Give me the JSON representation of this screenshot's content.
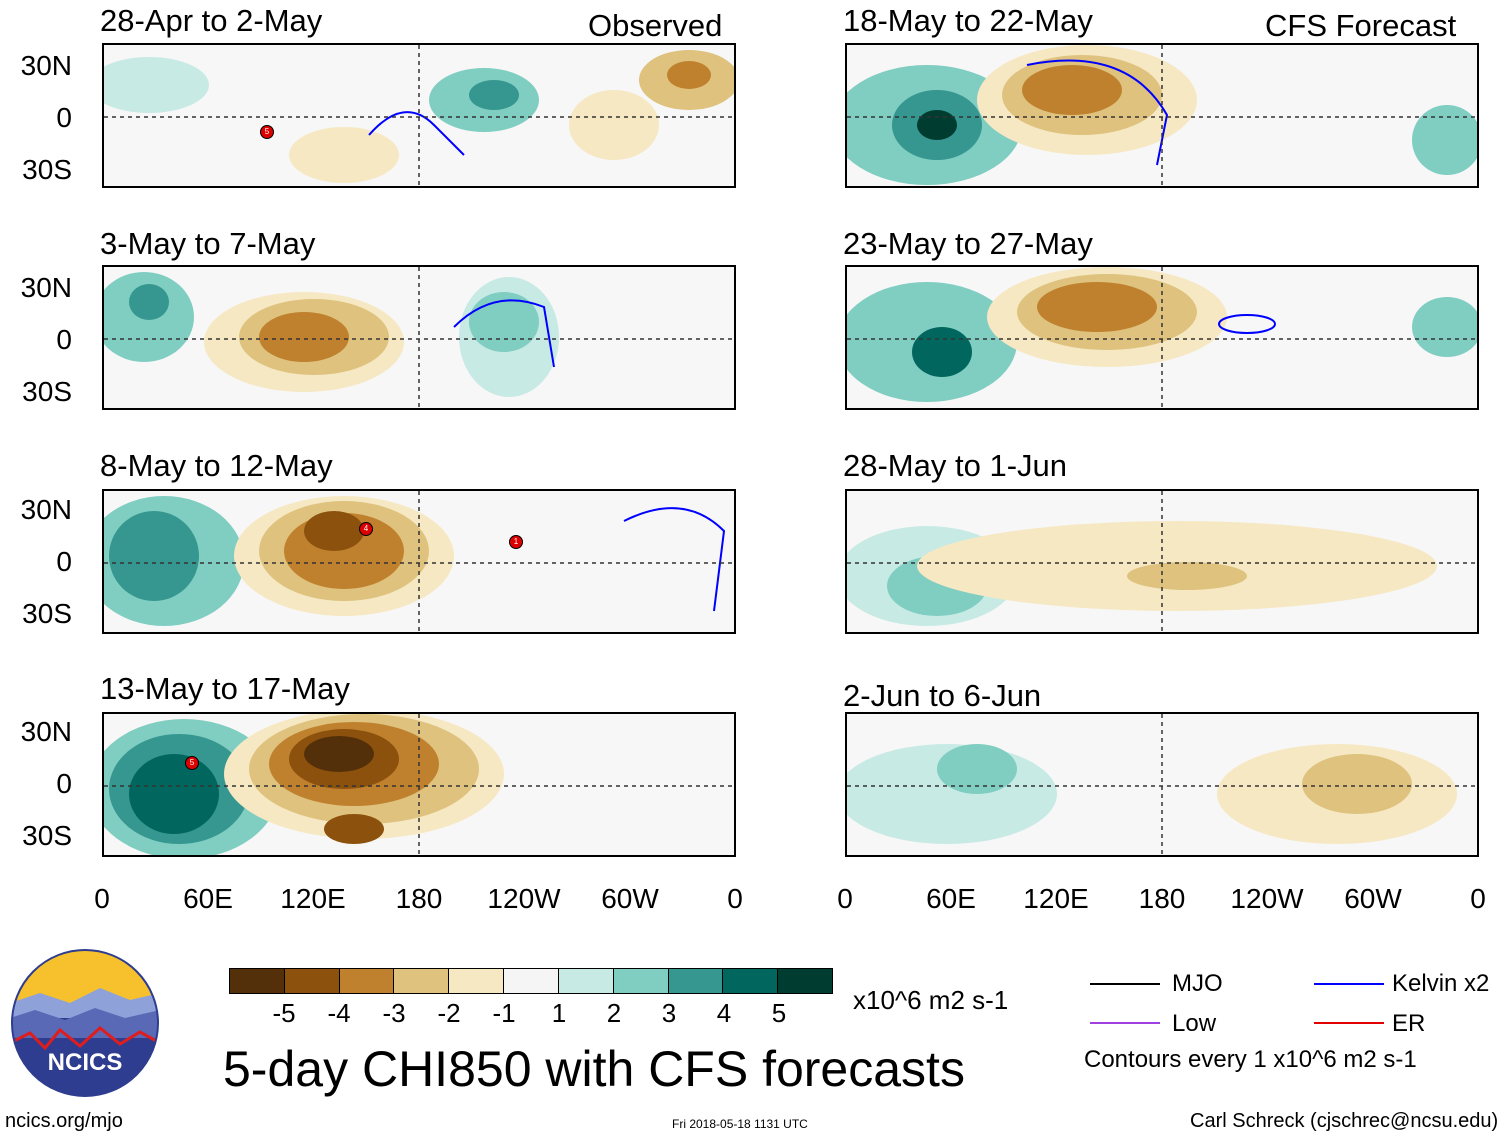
{
  "left_header": "Observed",
  "right_header": "CFS Forecast",
  "panels": [
    {
      "title": "28-Apr to 2-May"
    },
    {
      "title": "3-May to 7-May"
    },
    {
      "title": "8-May to 12-May"
    },
    {
      "title": "13-May to 17-May"
    },
    {
      "title": "18-May to 22-May"
    },
    {
      "title": "23-May to 27-May"
    },
    {
      "title": "28-May to 1-Jun"
    },
    {
      "title": "2-Jun to 6-Jun"
    }
  ],
  "lat_labels": [
    "30N",
    "0",
    "30S"
  ],
  "lon_labels": [
    "0",
    "60E",
    "120E",
    "180",
    "120W",
    "60W",
    "0"
  ],
  "colorbar": {
    "colors": [
      "#54300a",
      "#8c520d",
      "#bf812e",
      "#dec27e",
      "#f6e8c3",
      "#f5f5f5",
      "#c7eae5",
      "#80cdc1",
      "#35978f",
      "#01665e",
      "#013c30"
    ],
    "labels": [
      "-5",
      "-4",
      "-3",
      "-2",
      "-1",
      "1",
      "2",
      "3",
      "4",
      "5"
    ],
    "units": "x10^6 m2 s-1"
  },
  "main_title": "5-day CHI850 with CFS forecasts",
  "legend": {
    "items": [
      {
        "label": "MJO",
        "color": "#000000"
      },
      {
        "label": "Kelvin x2",
        "color": "#0000ff"
      },
      {
        "label": "Low",
        "color": "#a040e0"
      },
      {
        "label": "ER",
        "color": "#e00000"
      }
    ],
    "contour_note": "Contours every 1 x10^6 m2 s-1"
  },
  "logo_text": "NCICS",
  "footer": {
    "left": "ncics.org/mjo",
    "center": "Fri 2018-05-18 1131 UTC",
    "right": "Carl Schreck (cjschrec@ncsu.edu)"
  },
  "storm_markers": [
    {
      "panel": 0,
      "label": "5"
    },
    {
      "panel": 2,
      "label": "4"
    },
    {
      "panel": 2,
      "label": "1"
    },
    {
      "panel": 3,
      "label": "5"
    }
  ]
}
